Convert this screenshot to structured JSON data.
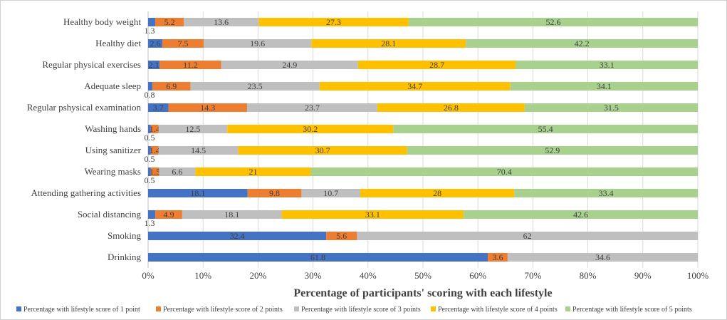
{
  "chart_data": {
    "type": "bar",
    "orientation": "horizontal-stacked-100",
    "xlabel": "Percentage of participants' scoring  with each lifestyle",
    "xlim": [
      0,
      100
    ],
    "xticks": [
      "0%",
      "10%",
      "20%",
      "30%",
      "40%",
      "50%",
      "60%",
      "70%",
      "80%",
      "90%",
      "100%"
    ],
    "grid": true,
    "legend_position": "bottom",
    "categories": [
      "Healthy body weight",
      "Healthy diet",
      "Regular physical exercises",
      "Adequate sleep",
      "Regular pshysical examination",
      "Washing hands",
      "Using sanitizer",
      "Wearing masks",
      "Attending gathering activities",
      "Social distancing",
      "Smoking",
      "Drinking"
    ],
    "series": [
      {
        "name": "Percentage with lifestyle score of 1 point",
        "color": "#4472C4",
        "values": [
          1.3,
          2.6,
          2.1,
          0.8,
          3.7,
          0.5,
          0.5,
          0.5,
          18.1,
          1.3,
          32.4,
          61.8
        ]
      },
      {
        "name": "Percentage with lifestyle score of 2 points",
        "color": "#ED7D31",
        "values": [
          5.2,
          7.5,
          11.2,
          6.9,
          14.3,
          1.4,
          1.4,
          1.5,
          9.8,
          4.9,
          5.6,
          3.6
        ]
      },
      {
        "name": "Percentage with lifestyle score of 3 points",
        "color": "#BFBFBF",
        "values": [
          13.6,
          19.6,
          24.9,
          23.5,
          23.7,
          12.5,
          14.5,
          6.6,
          10.7,
          18.1,
          62,
          34.6
        ]
      },
      {
        "name": "Percentage with lifestyle score of 4 points",
        "color": "#FFC000",
        "values": [
          27.3,
          28.1,
          28.7,
          34.7,
          26.8,
          30.2,
          30.7,
          21,
          28,
          33.1,
          null,
          null
        ]
      },
      {
        "name": "Percentage with lifestyle score of 5 points",
        "color": "#A9D18E",
        "values": [
          52.6,
          42.2,
          33.1,
          34.1,
          31.5,
          55.4,
          52.9,
          70.4,
          33.4,
          42.6,
          null,
          null
        ]
      }
    ]
  }
}
